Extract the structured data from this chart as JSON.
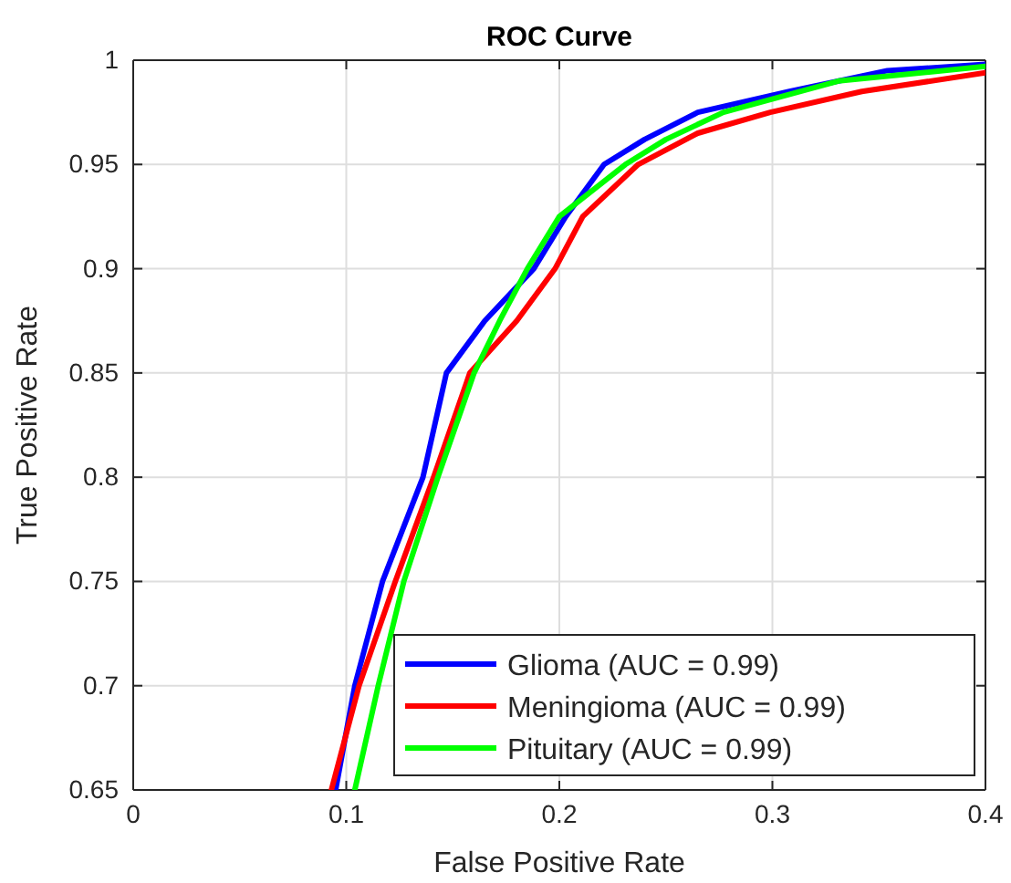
{
  "chart_data": {
    "type": "line",
    "title": "ROC Curve",
    "xlabel": "False Positive Rate",
    "ylabel": "True Positive Rate",
    "xlim": [
      0,
      0.4
    ],
    "ylim": [
      0.65,
      1
    ],
    "xticks": [
      0,
      0.1,
      0.2,
      0.3,
      0.4
    ],
    "yticks": [
      0.65,
      0.7,
      0.75,
      0.8,
      0.85,
      0.9,
      0.95,
      1
    ],
    "grid": true,
    "legend": "bottom right",
    "line_style": "solid",
    "marker": "none",
    "series": [
      {
        "name": "Glioma (AUC = 0.99)",
        "color": "#0000ff",
        "x": [
          0.095,
          0.104,
          0.117,
          0.136,
          0.147,
          0.165,
          0.188,
          0.203,
          0.221,
          0.24,
          0.265,
          0.308,
          0.354,
          0.4
        ],
        "values": [
          0.65,
          0.7,
          0.75,
          0.8,
          0.85,
          0.875,
          0.9,
          0.925,
          0.95,
          0.962,
          0.975,
          0.985,
          0.995,
          0.998
        ]
      },
      {
        "name": "Meningioma (AUC = 0.99)",
        "color": "#ff0000",
        "x": [
          0.093,
          0.106,
          0.123,
          0.141,
          0.158,
          0.18,
          0.198,
          0.211,
          0.237,
          0.265,
          0.299,
          0.342,
          0.4
        ],
        "values": [
          0.65,
          0.7,
          0.75,
          0.8,
          0.85,
          0.875,
          0.9,
          0.925,
          0.95,
          0.965,
          0.975,
          0.985,
          0.994
        ]
      },
      {
        "name": "Pituitary (AUC = 0.99)",
        "color": "#00ff00",
        "x": [
          0.104,
          0.115,
          0.127,
          0.143,
          0.16,
          0.172,
          0.185,
          0.2,
          0.231,
          0.25,
          0.277,
          0.331,
          0.4
        ],
        "values": [
          0.65,
          0.7,
          0.75,
          0.8,
          0.85,
          0.875,
          0.9,
          0.925,
          0.95,
          0.962,
          0.975,
          0.99,
          0.997
        ]
      }
    ]
  }
}
